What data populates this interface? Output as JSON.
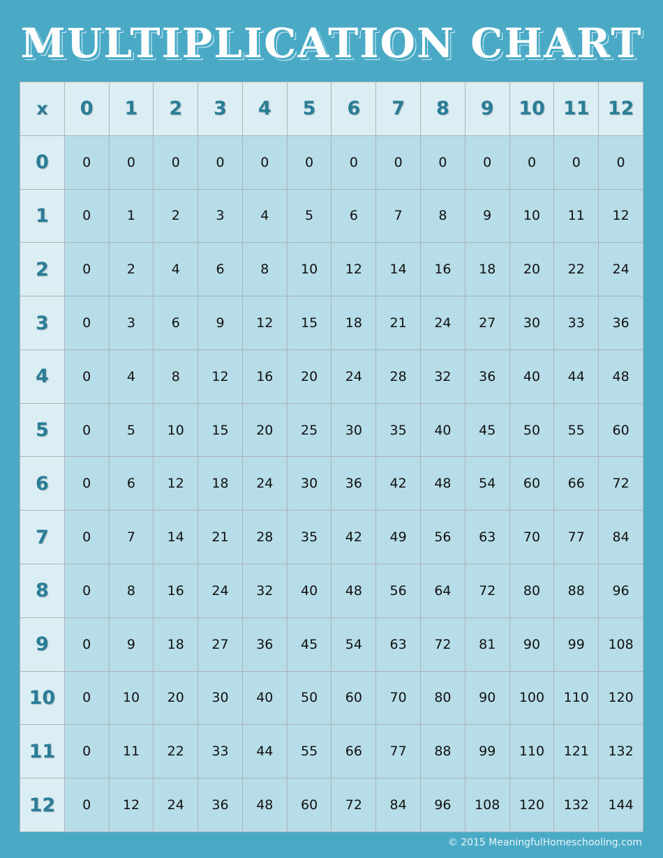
{
  "title": "MULTIPLICATION CHART",
  "table": {
    "corner": "x",
    "columns": [
      "0",
      "1",
      "2",
      "3",
      "4",
      "5",
      "6",
      "7",
      "8",
      "9",
      "10",
      "11",
      "12"
    ],
    "row_labels": [
      "0",
      "1",
      "2",
      "3",
      "4",
      "5",
      "6",
      "7",
      "8",
      "9",
      "10",
      "11",
      "12"
    ],
    "rows": [
      [
        "0",
        "0",
        "0",
        "0",
        "0",
        "0",
        "0",
        "0",
        "0",
        "0",
        "0",
        "0",
        "0"
      ],
      [
        "0",
        "1",
        "2",
        "3",
        "4",
        "5",
        "6",
        "7",
        "8",
        "9",
        "10",
        "11",
        "12"
      ],
      [
        "0",
        "2",
        "4",
        "6",
        "8",
        "10",
        "12",
        "14",
        "16",
        "18",
        "20",
        "22",
        "24"
      ],
      [
        "0",
        "3",
        "6",
        "9",
        "12",
        "15",
        "18",
        "21",
        "24",
        "27",
        "30",
        "33",
        "36"
      ],
      [
        "0",
        "4",
        "8",
        "12",
        "16",
        "20",
        "24",
        "28",
        "32",
        "36",
        "40",
        "44",
        "48"
      ],
      [
        "0",
        "5",
        "10",
        "15",
        "20",
        "25",
        "30",
        "35",
        "40",
        "45",
        "50",
        "55",
        "60"
      ],
      [
        "0",
        "6",
        "12",
        "18",
        "24",
        "30",
        "36",
        "42",
        "48",
        "54",
        "60",
        "66",
        "72"
      ],
      [
        "0",
        "7",
        "14",
        "21",
        "28",
        "35",
        "42",
        "49",
        "56",
        "63",
        "70",
        "77",
        "84"
      ],
      [
        "0",
        "8",
        "16",
        "24",
        "32",
        "40",
        "48",
        "56",
        "64",
        "72",
        "80",
        "88",
        "96"
      ],
      [
        "0",
        "9",
        "18",
        "27",
        "36",
        "45",
        "54",
        "63",
        "72",
        "81",
        "90",
        "99",
        "108"
      ],
      [
        "0",
        "10",
        "20",
        "30",
        "40",
        "50",
        "60",
        "70",
        "80",
        "90",
        "100",
        "110",
        "120"
      ],
      [
        "0",
        "11",
        "22",
        "33",
        "44",
        "55",
        "66",
        "77",
        "88",
        "99",
        "110",
        "121",
        "132"
      ],
      [
        "0",
        "12",
        "24",
        "36",
        "48",
        "60",
        "72",
        "84",
        "96",
        "108",
        "120",
        "132",
        "144"
      ]
    ]
  },
  "colors": {
    "background": "#4aaac6",
    "header_cell": "#dbeef4",
    "value_cell": "#b7dde8",
    "header_text": "#2a7d96"
  },
  "footer": "© 2015 MeaningfulHomeschooling.com"
}
